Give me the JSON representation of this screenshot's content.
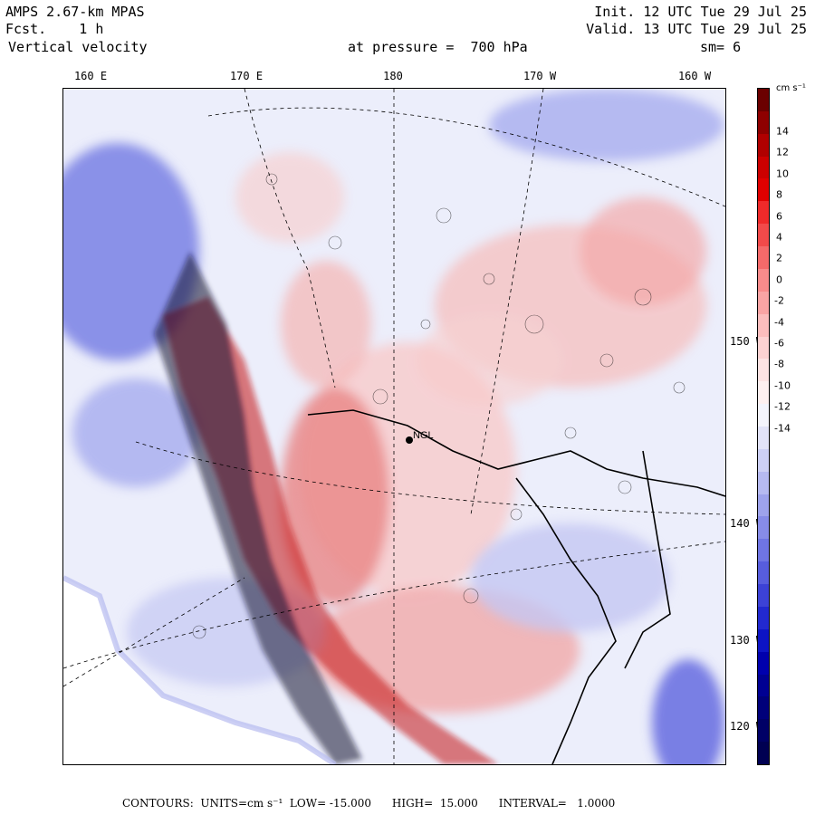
{
  "header": {
    "model": "AMPS 2.67-km MPAS",
    "fcst": "Fcst.    1 h",
    "field": "Vertical velocity",
    "init": "Init. 12 UTC Tue 29 Jul 25",
    "valid": "Valid. 13 UTC Tue 29 Jul 25",
    "pressure": "at pressure =  700 hPa",
    "smooth": "sm= 6"
  },
  "longitude_labels": [
    "160 E",
    "170 E",
    "180",
    "170 W",
    "160 W"
  ],
  "latitude_labels": [
    "150 W",
    "140 W",
    "130 W",
    "120 W"
  ],
  "station": {
    "label": "NGL"
  },
  "colorbar": {
    "units": "cm s⁻¹",
    "ticks": [
      "14",
      "12",
      "10",
      "8",
      "6",
      "4",
      "2",
      "0",
      "-2",
      "-4",
      "-6",
      "-8",
      "-10",
      "-12",
      "-14"
    ],
    "colors_top_to_bottom": [
      "#6b0000",
      "#8e0000",
      "#b00000",
      "#cc0000",
      "#e00000",
      "#ef2a2a",
      "#f24a4a",
      "#f56a6a",
      "#f88b8b",
      "#f9a4a4",
      "#fbbdbd",
      "#fcd2d2",
      "#fde3e3",
      "#fef0f0",
      "#f4f4fc",
      "#e2e3f8",
      "#cdd0f5",
      "#b6baf1",
      "#9ea3ec",
      "#878ce8",
      "#6f75e3",
      "#575ddd",
      "#3c42d6",
      "#2229cf",
      "#0d14c4",
      "#0000ad",
      "#000092",
      "#00007a",
      "#000066",
      "#000052"
    ]
  },
  "footer": {
    "contours_label": "CONTOURS:",
    "units": "UNITS=cm s⁻¹",
    "low": "LOW= -15.000",
    "high": "HIGH=  15.000",
    "interval": "INTERVAL=   1.0000"
  }
}
